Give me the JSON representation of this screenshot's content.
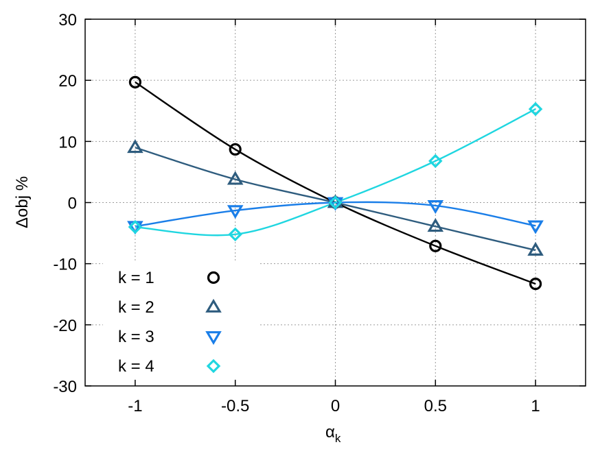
{
  "chart_data": {
    "type": "line",
    "title": "",
    "xlabel": "α",
    "xlabel_subscript": "k",
    "ylabel": "Δobj %",
    "xlim": [
      -1.25,
      1.25
    ],
    "ylim": [
      -30,
      30
    ],
    "x_ticks": [
      -1,
      -0.5,
      0,
      0.5,
      1
    ],
    "x_tick_labels": [
      "-1",
      "-0.5",
      "0",
      "0.5",
      "1"
    ],
    "y_ticks": [
      -30,
      -20,
      -10,
      0,
      10,
      20,
      30
    ],
    "y_tick_labels": [
      "-30",
      "-20",
      "-10",
      "0",
      "10",
      "20",
      "30"
    ],
    "grid": true,
    "legend_position": "bottom-left",
    "x": [
      -1,
      -0.5,
      0,
      0.5,
      1
    ],
    "series": [
      {
        "name": "k = 1",
        "marker": "circle",
        "color": "#000000",
        "values": [
          19.7,
          8.7,
          0,
          -7.1,
          -13.3
        ]
      },
      {
        "name": "k = 2",
        "marker": "triangle-up",
        "color": "#2e5c7e",
        "values": [
          9.0,
          3.8,
          0,
          -3.9,
          -7.8
        ]
      },
      {
        "name": "k = 3",
        "marker": "triangle-down",
        "color": "#1a7ee8",
        "values": [
          -3.9,
          -1.3,
          0,
          -0.5,
          -3.8
        ]
      },
      {
        "name": "k = 4",
        "marker": "diamond",
        "color": "#1fd6e0",
        "values": [
          -4.0,
          -5.2,
          0,
          6.8,
          15.3
        ]
      }
    ]
  }
}
